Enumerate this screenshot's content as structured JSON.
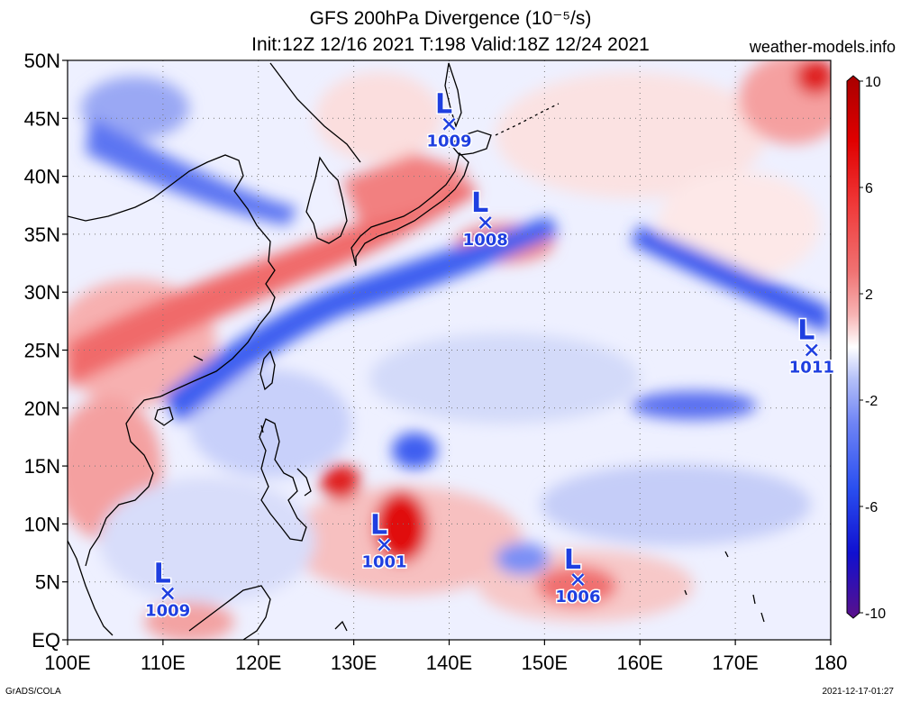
{
  "header": {
    "title_line1": "GFS 200hPa Divergence (10⁻⁵/s)",
    "title_line2": "Init:12Z 12/16 2021 T:198 Valid:18Z 12/24 2021",
    "brand": "weather-models.info"
  },
  "axes": {
    "lat_labels": [
      "50N",
      "45N",
      "40N",
      "35N",
      "30N",
      "25N",
      "20N",
      "15N",
      "10N",
      "5N",
      "EQ"
    ],
    "lon_labels": [
      "100E",
      "110E",
      "120E",
      "130E",
      "140E",
      "150E",
      "160E",
      "170E",
      "180"
    ]
  },
  "colorbar": {
    "labels": [
      "10",
      "6",
      "2",
      "-2",
      "-6",
      "-10"
    ],
    "colors": [
      "#6a0f9a",
      "#1010d0",
      "#2a4ff0",
      "#6f84f5",
      "#b3bff8",
      "#e6eaff",
      "#ffffff",
      "#ffe6e6",
      "#f7b3b3",
      "#f07272",
      "#f03a3a",
      "#e00000",
      "#a80000"
    ]
  },
  "lows": [
    {
      "pressure": "1009",
      "letter": "L"
    },
    {
      "pressure": "1008",
      "letter": "L"
    },
    {
      "pressure": "1011",
      "letter": "L"
    },
    {
      "pressure": "1001",
      "letter": "L"
    },
    {
      "pressure": "1006",
      "letter": "L"
    },
    {
      "pressure": "1009",
      "letter": "L"
    }
  ],
  "footer": {
    "left": "GrADS/COLA",
    "right": "2021-12-17-01:27"
  }
}
